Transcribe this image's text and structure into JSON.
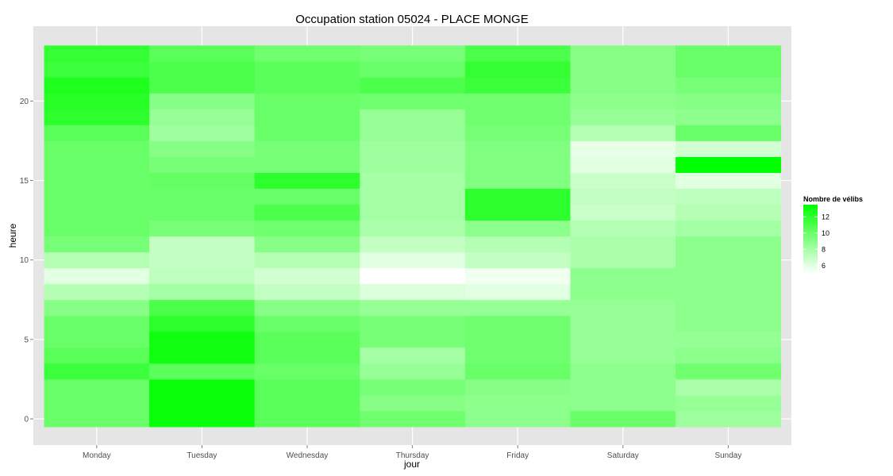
{
  "chart_data": {
    "type": "heatmap",
    "title": "Occupation station 05024 - PLACE MONGE",
    "xlabel": "jour",
    "ylabel": "heure",
    "x": [
      "Monday",
      "Tuesday",
      "Wednesday",
      "Thursday",
      "Friday",
      "Saturday",
      "Sunday"
    ],
    "y": [
      0,
      1,
      2,
      3,
      4,
      5,
      6,
      7,
      8,
      9,
      10,
      11,
      12,
      13,
      14,
      15,
      16,
      17,
      18,
      19,
      20,
      21,
      22,
      23
    ],
    "y_ticks": [
      0,
      5,
      10,
      15,
      20
    ],
    "y_tick_labels": [
      "0",
      "5",
      "10",
      "15",
      "20"
    ],
    "values": [
      [
        10.0,
        13.2,
        10.5,
        9.8,
        8.8,
        10.0,
        8.2
      ],
      [
        10.0,
        13.2,
        10.5,
        9.0,
        8.8,
        8.8,
        8.5
      ],
      [
        10.0,
        13.2,
        10.5,
        9.5,
        9.0,
        8.8,
        7.8
      ],
      [
        11.5,
        10.5,
        10.0,
        8.5,
        10.0,
        8.8,
        9.8
      ],
      [
        10.5,
        13.0,
        10.5,
        8.0,
        9.8,
        8.5,
        8.8
      ],
      [
        10.0,
        13.0,
        10.5,
        9.5,
        9.8,
        8.5,
        8.5
      ],
      [
        10.0,
        12.0,
        10.0,
        9.5,
        9.8,
        8.5,
        8.8
      ],
      [
        9.0,
        11.0,
        9.0,
        8.5,
        8.5,
        8.5,
        8.8
      ],
      [
        7.5,
        8.0,
        7.0,
        6.2,
        6.0,
        8.8,
        8.8
      ],
      [
        6.0,
        7.2,
        6.5,
        5.0,
        5.5,
        8.8,
        8.8
      ],
      [
        7.5,
        7.0,
        7.5,
        6.0,
        7.0,
        7.8,
        8.8
      ],
      [
        9.5,
        7.0,
        9.0,
        7.0,
        7.5,
        7.8,
        8.8
      ],
      [
        10.0,
        9.5,
        9.8,
        7.8,
        8.8,
        7.5,
        8.0
      ],
      [
        10.0,
        10.0,
        11.0,
        8.0,
        12.0,
        6.8,
        7.5
      ],
      [
        10.0,
        10.0,
        10.0,
        8.0,
        12.0,
        7.0,
        7.2
      ],
      [
        10.0,
        10.2,
        12.0,
        8.0,
        9.2,
        6.8,
        6.0
      ],
      [
        10.0,
        9.5,
        9.5,
        8.2,
        9.2,
        6.0,
        13.5
      ],
      [
        10.0,
        9.0,
        9.5,
        8.2,
        9.2,
        5.8,
        6.5
      ],
      [
        10.5,
        8.2,
        10.0,
        8.5,
        9.5,
        7.5,
        10.0
      ],
      [
        12.0,
        8.5,
        10.0,
        8.5,
        9.8,
        8.5,
        8.8
      ],
      [
        12.2,
        9.0,
        10.0,
        9.8,
        9.8,
        8.8,
        9.0
      ],
      [
        12.5,
        11.0,
        10.5,
        11.0,
        11.5,
        9.0,
        9.5
      ],
      [
        11.5,
        11.0,
        10.5,
        10.0,
        11.8,
        9.0,
        10.0
      ],
      [
        11.8,
        10.5,
        9.8,
        9.5,
        11.0,
        9.0,
        10.0
      ]
    ],
    "color_scale": {
      "low": "#ffffff",
      "high": "#00ff00",
      "min": 5,
      "max": 13.5
    },
    "legend": {
      "title": "Nombre de vélibs",
      "ticks": [
        6,
        8,
        10,
        12
      ],
      "tick_labels": [
        "6",
        "8",
        "10",
        "12"
      ],
      "position": "right"
    },
    "grid": true,
    "panel_background": "#e5e5e5"
  }
}
